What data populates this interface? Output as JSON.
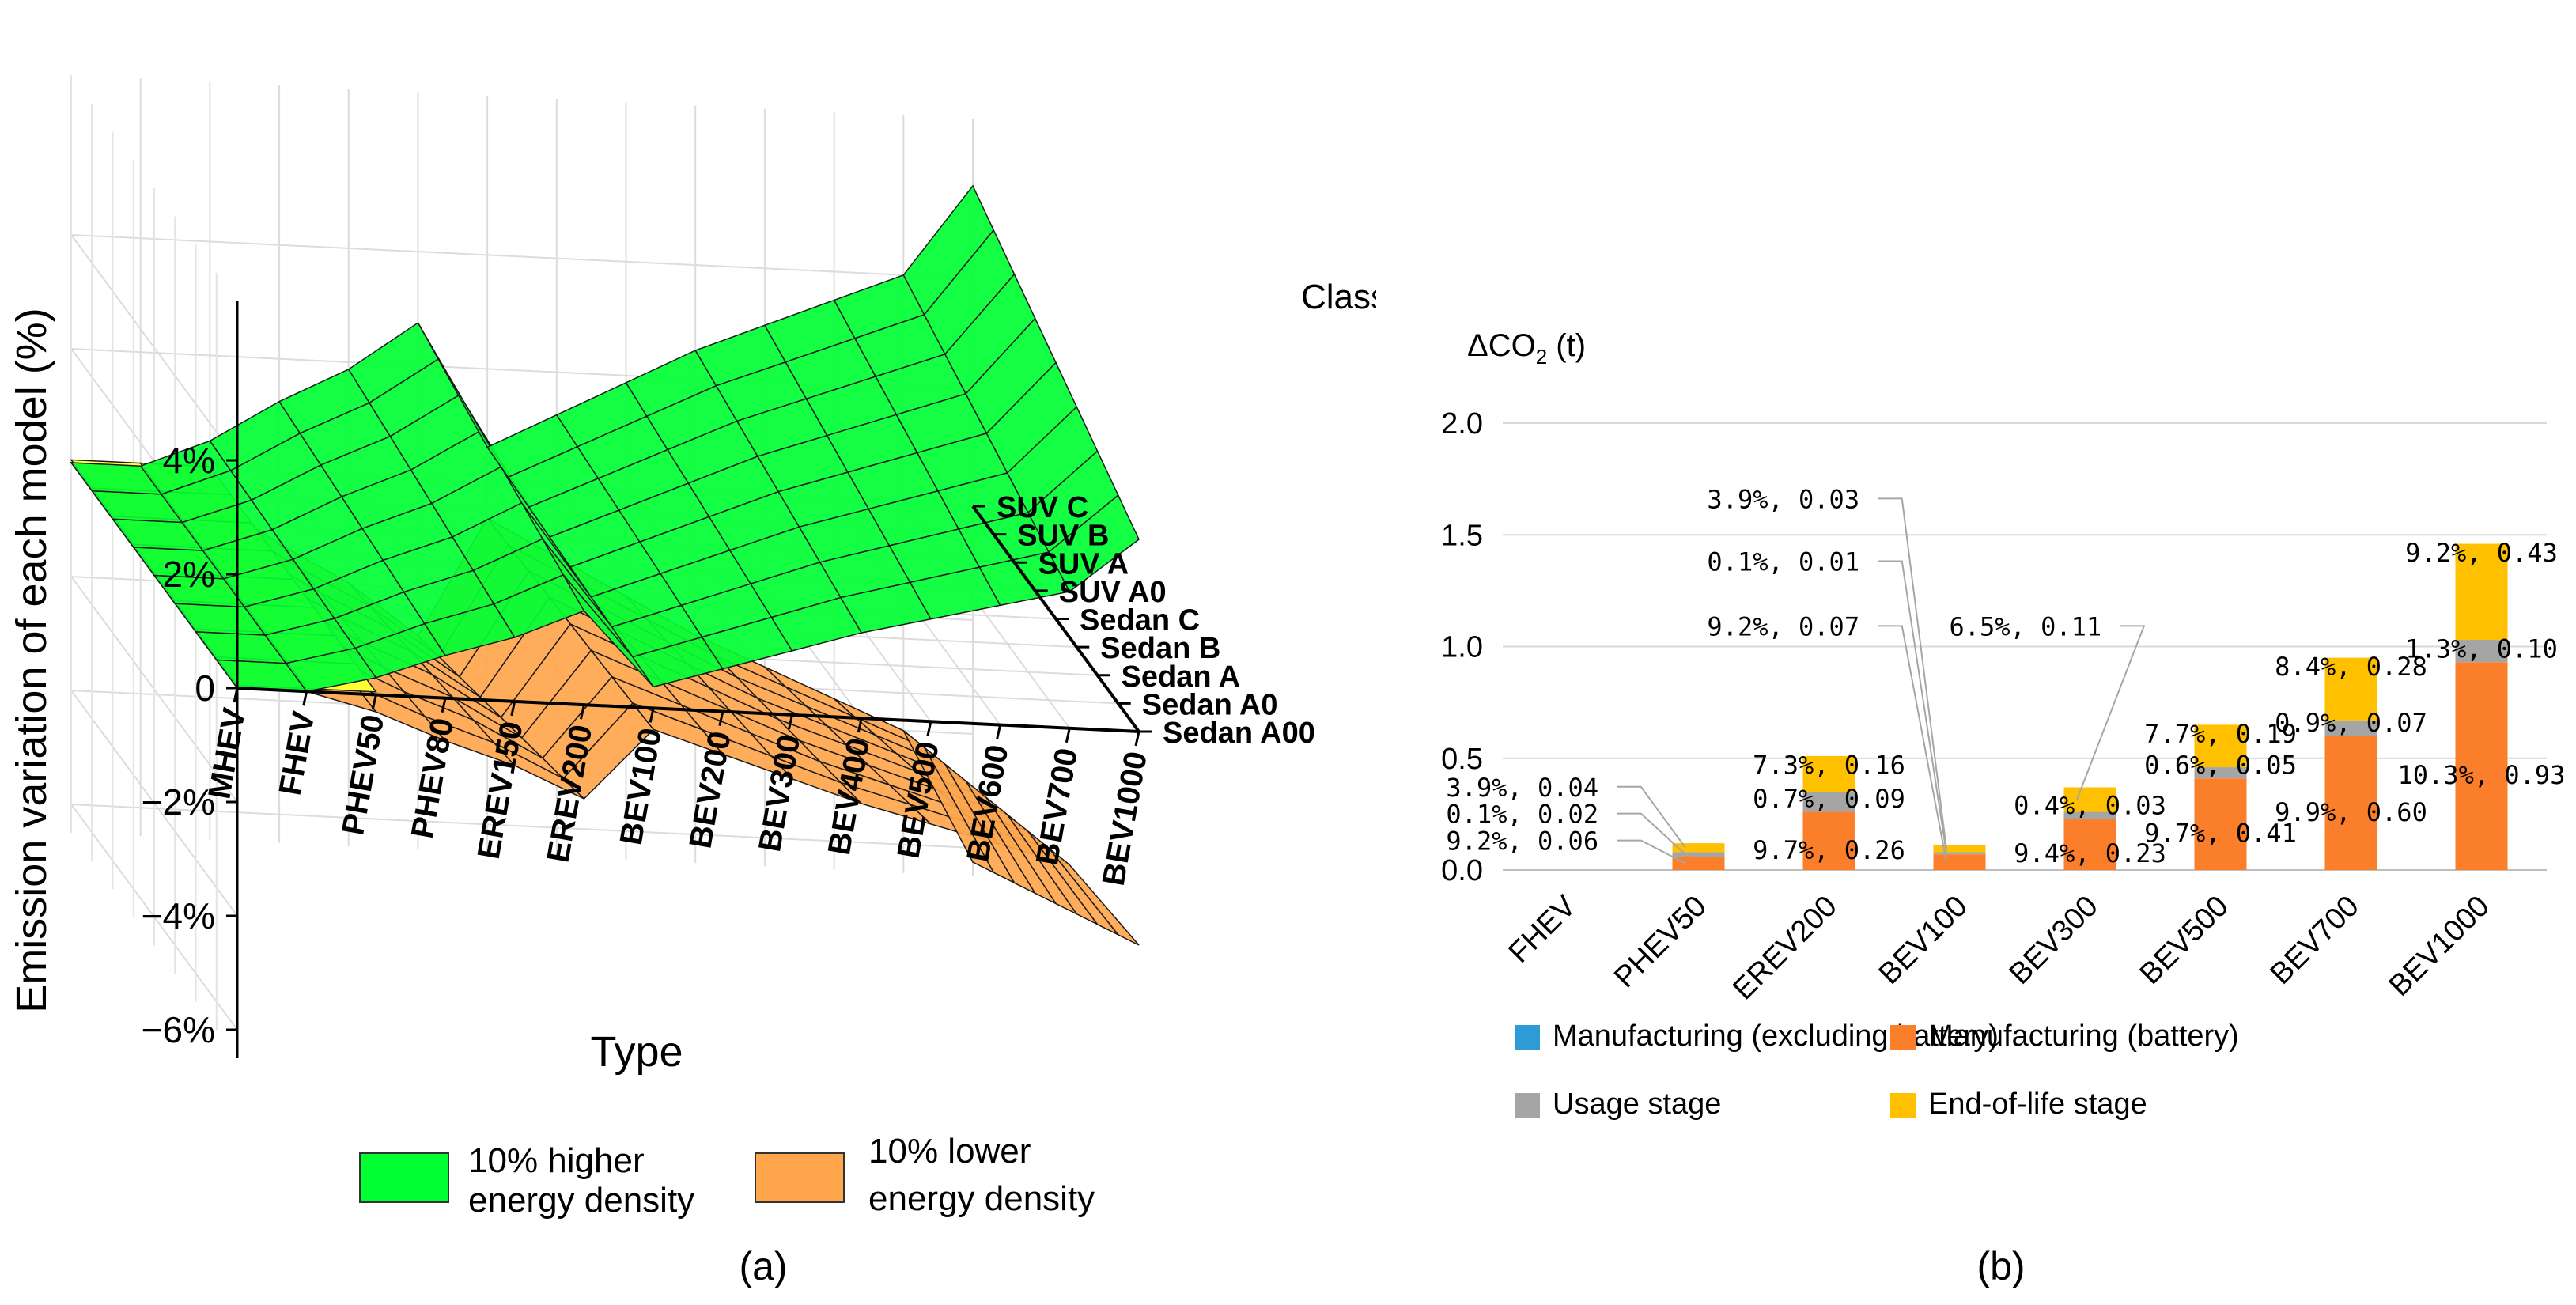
{
  "chart_data": [
    {
      "panel": "(a)",
      "type": "surface3d",
      "zlabel": "Emission variation of each model (%)",
      "xlabel": "Type",
      "ylabel": "Class",
      "z_ticks": [
        "4%",
        "2%",
        "0",
        "−2%",
        "−4%",
        "−6%"
      ],
      "z_values": [
        4,
        2,
        0,
        -2,
        -4,
        -6
      ],
      "types": [
        "MHEV",
        "FHEV",
        "PHEV50",
        "PHEV80",
        "EREV150",
        "EREV200",
        "BEV100",
        "BEV200",
        "BEV300",
        "BEV400",
        "BEV500",
        "BEV600",
        "BEV700",
        "BEV1000"
      ],
      "classes": [
        "Sedan A00",
        "Sedan A0",
        "Sedan A",
        "Sedan B",
        "Sedan C",
        "SUV A0",
        "SUV A",
        "SUV B",
        "SUV C"
      ],
      "series": [
        {
          "name": "10% higher energy density",
          "color": "#00ff33",
          "values_by_type_approx": [
            0.0,
            0.0,
            0.4,
            1.0,
            1.5,
            2.2,
            0.5,
            1.0,
            1.5,
            2.0,
            2.4,
            2.8,
            3.2,
            4.5
          ]
        },
        {
          "name": "10% lower energy density",
          "color": "#ffa64d",
          "values_by_type_approx": [
            0.0,
            0.0,
            -0.4,
            -1.0,
            -1.5,
            -2.2,
            -0.5,
            -1.0,
            -1.5,
            -2.0,
            -2.4,
            -2.8,
            -3.2,
            -5.0
          ]
        }
      ],
      "baseline_color": "#ffff33",
      "legend": [
        {
          "line1": "10% higher",
          "line2": "energy density",
          "color": "#00ff33"
        },
        {
          "line1": "10% lower",
          "line2": "energy density",
          "color": "#ffa64d"
        }
      ]
    },
    {
      "panel": "(b)",
      "type": "stacked-bar",
      "ylabel_main": "ΔCO",
      "ylabel_sub": "2",
      "ylabel_unit": " (t)",
      "ylim": [
        0,
        2.0
      ],
      "y_ticks": [
        "0.0",
        "0.5",
        "1.0",
        "1.5",
        "2.0"
      ],
      "y_tick_values": [
        0,
        0.5,
        1.0,
        1.5,
        2.0
      ],
      "categories": [
        "FHEV",
        "PHEV50",
        "EREV200",
        "BEV100",
        "BEV300",
        "BEV500",
        "BEV700",
        "BEV1000"
      ],
      "series": [
        {
          "name": "Manufacturing (excluding battery)",
          "color": "#2e9bd6",
          "values": [
            0,
            0,
            0,
            0,
            0,
            0,
            0,
            0
          ]
        },
        {
          "name": "Manufacturing (battery)",
          "color": "#fb7e2b",
          "values": [
            0,
            0.06,
            0.26,
            0.07,
            0.23,
            0.41,
            0.6,
            0.93
          ]
        },
        {
          "name": "Usage stage",
          "color": "#a5a5a5",
          "values": [
            0,
            0.02,
            0.09,
            0.01,
            0.03,
            0.05,
            0.07,
            0.1
          ]
        },
        {
          "name": "End-of-life stage",
          "color": "#ffc000",
          "values": [
            0,
            0.04,
            0.16,
            0.03,
            0.11,
            0.19,
            0.28,
            0.43
          ]
        }
      ],
      "annotations": [
        {
          "cat": 1,
          "seg": 3,
          "text": "3.9%, 0.04"
        },
        {
          "cat": 1,
          "seg": 2,
          "text": "0.1%, 0.02"
        },
        {
          "cat": 1,
          "seg": 1,
          "text": "9.2%, 0.06"
        },
        {
          "cat": 2,
          "seg": 3,
          "text": "7.3%, 0.16"
        },
        {
          "cat": 2,
          "seg": 2,
          "text": "0.7%, 0.09"
        },
        {
          "cat": 2,
          "seg": 1,
          "text": "9.7%, 0.26"
        },
        {
          "cat": 3,
          "seg": 3,
          "text": "3.9%, 0.03"
        },
        {
          "cat": 3,
          "seg": 2,
          "text": "0.1%, 0.01"
        },
        {
          "cat": 3,
          "seg": 1,
          "text": "9.2%, 0.07"
        },
        {
          "cat": 4,
          "seg": 3,
          "text": "6.5%, 0.11"
        },
        {
          "cat": 4,
          "seg": 2,
          "text": "0.4%, 0.03"
        },
        {
          "cat": 4,
          "seg": 1,
          "text": "9.4%, 0.23"
        },
        {
          "cat": 5,
          "seg": 3,
          "text": "7.7%, 0.19"
        },
        {
          "cat": 5,
          "seg": 2,
          "text": "0.6%, 0.05"
        },
        {
          "cat": 5,
          "seg": 1,
          "text": "9.7%, 0.41"
        },
        {
          "cat": 6,
          "seg": 3,
          "text": "8.4%, 0.28"
        },
        {
          "cat": 6,
          "seg": 2,
          "text": "0.9%, 0.07"
        },
        {
          "cat": 6,
          "seg": 1,
          "text": "9.9%, 0.60"
        },
        {
          "cat": 7,
          "seg": 3,
          "text": "9.2%, 0.43"
        },
        {
          "cat": 7,
          "seg": 2,
          "text": "1.3%, 0.10"
        },
        {
          "cat": 7,
          "seg": 1,
          "text": "10.3%, 0.93"
        }
      ]
    }
  ]
}
